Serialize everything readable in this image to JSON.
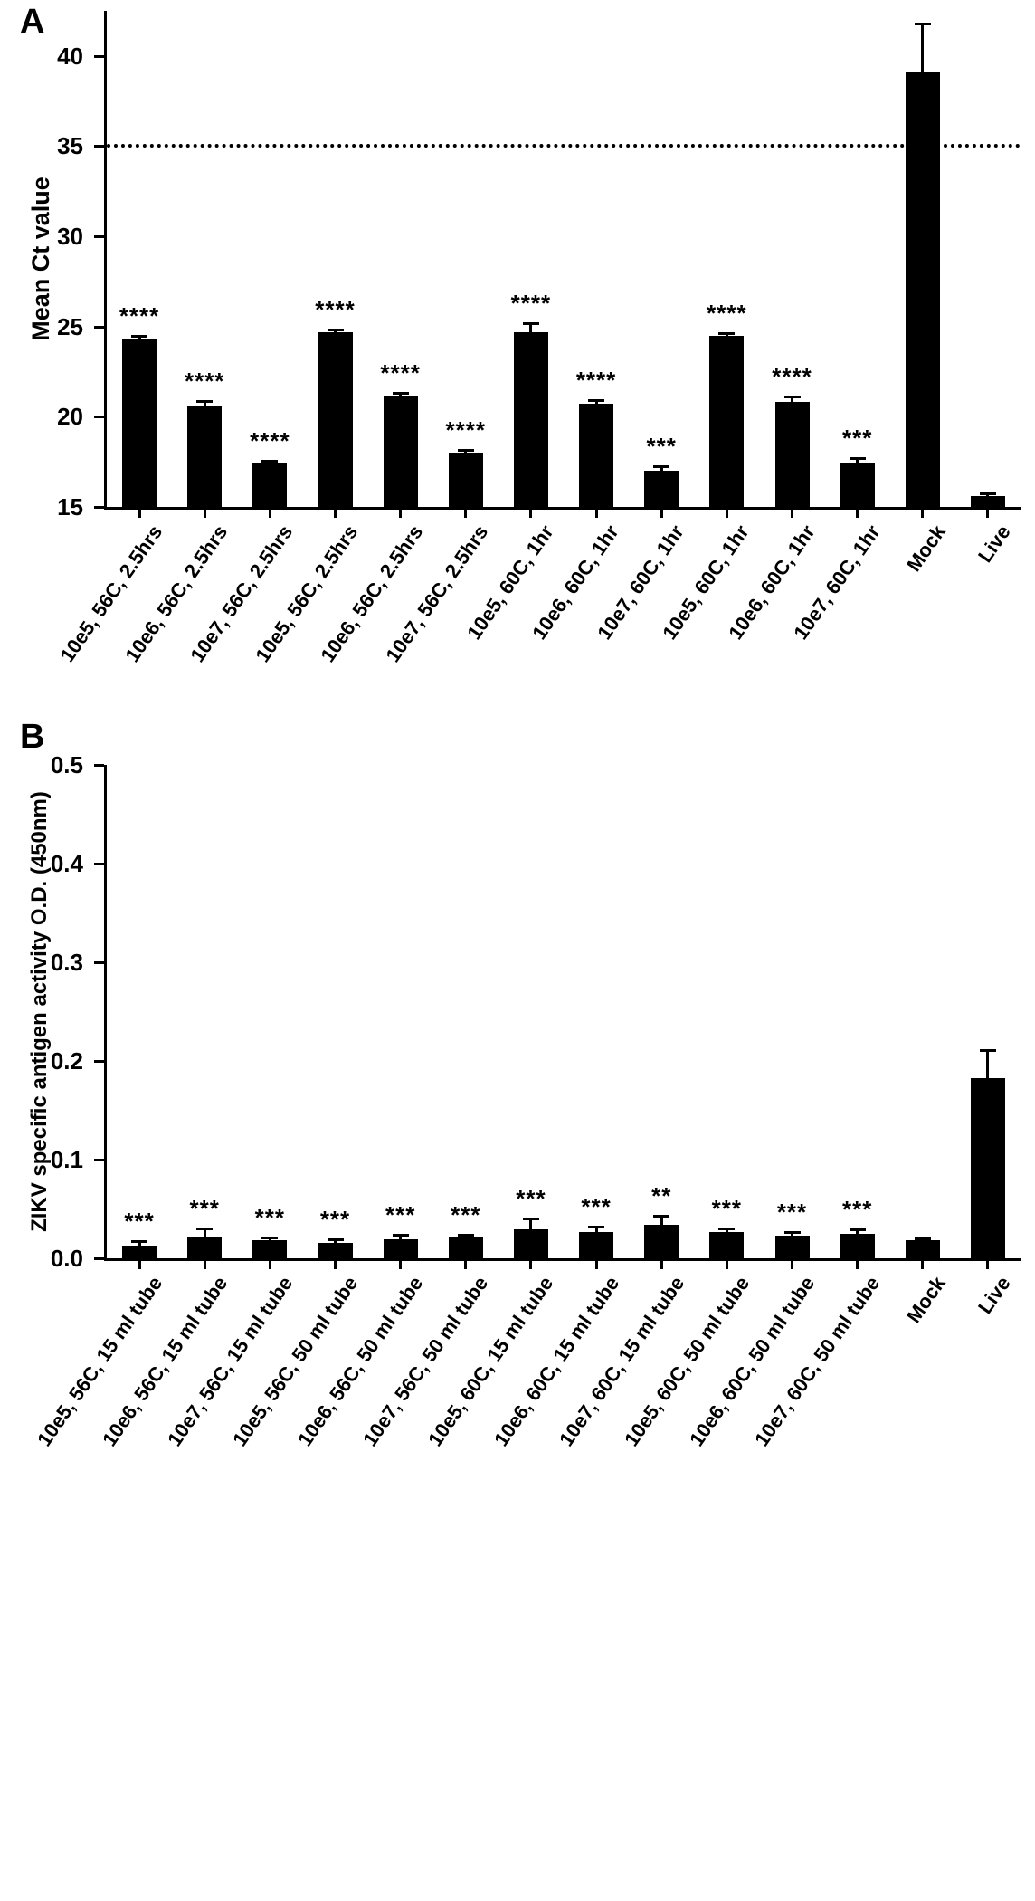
{
  "chart_data": [
    {
      "type": "bar",
      "panel_label": "A",
      "title": "",
      "xlabel": "",
      "ylabel": "Mean Ct value",
      "ylim": [
        15,
        42.5
      ],
      "yticks": [
        15,
        20,
        25,
        30,
        35,
        40
      ],
      "ytick_format": "int",
      "grid": false,
      "legend": false,
      "reference_line": {
        "y": 35,
        "style": "dotted"
      },
      "bar_color": "#000000",
      "categories": [
        "10e5, 56C, 2.5hrs",
        "10e6, 56C, 2.5hrs",
        "10e7, 56C, 2.5hrs",
        "10e5, 56C, 2.5hrs",
        "10e6, 56C, 2.5hrs",
        "10e7, 56C, 2.5hrs",
        "10e5, 60C, 1hr",
        "10e6, 60C, 1hr",
        "10e7, 60C, 1hr",
        "10e5, 60C, 1hr",
        "10e6, 60C, 1hr",
        "10e7, 60C, 1hr",
        "Mock",
        "Live"
      ],
      "values": [
        24.3,
        20.6,
        17.4,
        24.7,
        21.1,
        18.0,
        24.7,
        20.7,
        17.0,
        24.5,
        20.8,
        17.4,
        39.1,
        15.6
      ],
      "errors": [
        0.2,
        0.25,
        0.15,
        0.15,
        0.2,
        0.15,
        0.5,
        0.2,
        0.25,
        0.15,
        0.3,
        0.3,
        2.7,
        0.15
      ],
      "significance": [
        "****",
        "****",
        "****",
        "****",
        "****",
        "****",
        "****",
        "****",
        "***",
        "****",
        "****",
        "***",
        "",
        ""
      ]
    },
    {
      "type": "bar",
      "panel_label": "B",
      "title": "",
      "xlabel": "",
      "ylabel": "ZIKV specific antigen activity O.D. (450nm)",
      "ylim": [
        0,
        0.5
      ],
      "yticks": [
        0,
        0.1,
        0.2,
        0.3,
        0.4,
        0.5
      ],
      "ytick_format": "one_decimal",
      "grid": false,
      "legend": false,
      "reference_line": null,
      "bar_color": "#000000",
      "categories": [
        "10e5, 56C, 15 ml tube",
        "10e6, 56C, 15 ml tube",
        "10e7, 56C, 15 ml tube",
        "10e5, 56C, 50 ml tube",
        "10e6, 56C, 50 ml tube",
        "10e7, 56C, 50 ml tube",
        "10e5, 60C, 15 ml tube",
        "10e6, 60C, 15 ml tube",
        "10e7, 60C, 15 ml tube",
        "10e5, 60C, 50 ml tube",
        "10e6, 60C, 50 ml tube",
        "10e7, 60C, 50 ml tube",
        "Mock",
        "Live"
      ],
      "values": [
        0.013,
        0.021,
        0.018,
        0.016,
        0.019,
        0.021,
        0.029,
        0.027,
        0.034,
        0.027,
        0.023,
        0.025,
        0.018,
        0.183
      ],
      "errors": [
        0.004,
        0.009,
        0.003,
        0.003,
        0.005,
        0.003,
        0.011,
        0.005,
        0.009,
        0.003,
        0.004,
        0.004,
        0.002,
        0.028
      ],
      "significance": [
        "***",
        "***",
        "***",
        "***",
        "***",
        "***",
        "***",
        "***",
        "**",
        "***",
        "***",
        "***",
        "",
        ""
      ]
    }
  ]
}
